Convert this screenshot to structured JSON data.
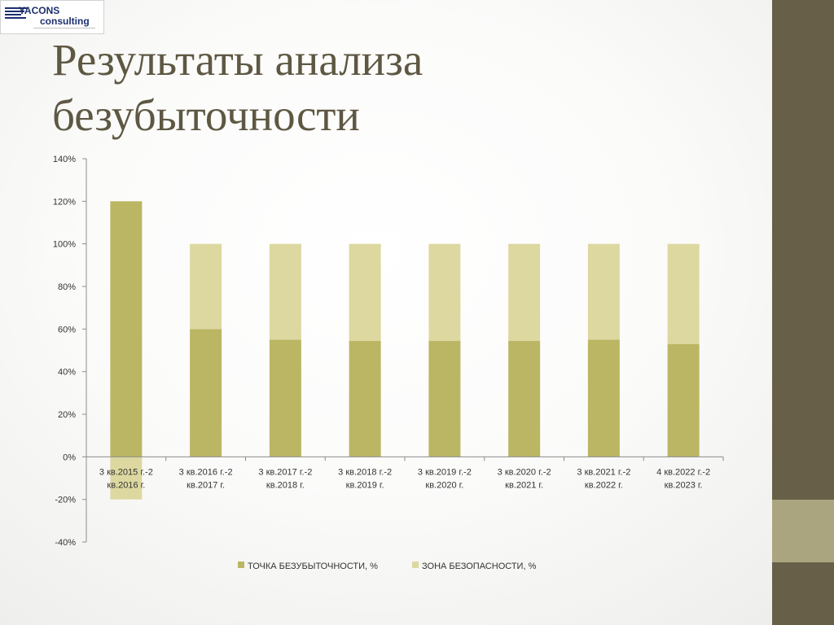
{
  "logo": {
    "line1": "YACONS",
    "line2": "consulting"
  },
  "slide": {
    "title_line1": "Результаты анализа",
    "title_line2": "безубыточности"
  },
  "colors": {
    "series1": "#bbb663",
    "series2": "#ddd8a0",
    "side_band": "#675f48",
    "side_accent": "#aba57f",
    "title": "#5e5843"
  },
  "chart_data": {
    "type": "bar",
    "stacked": true,
    "categories": [
      [
        "3 кв.2015 г.-2",
        "кв.2016 г."
      ],
      [
        "3 кв.2016 г.-2",
        "кв.2017 г."
      ],
      [
        "3 кв.2017 г.-2",
        "кв.2018 г."
      ],
      [
        "3 кв.2018 г.-2",
        "кв.2019 г."
      ],
      [
        "3 кв.2019 г.-2",
        "кв.2020 г."
      ],
      [
        "3 кв.2020 г.-2",
        "кв.2021 г."
      ],
      [
        "3 кв.2021 г.-2",
        "кв.2022 г."
      ],
      [
        "4 кв.2022 г.-2",
        "кв.2023 г."
      ]
    ],
    "series": [
      {
        "name": "ТОЧКА БЕЗУБЫТОЧНОСТИ, %",
        "values": [
          120,
          60,
          55,
          54.5,
          54.5,
          54.5,
          55,
          53
        ]
      },
      {
        "name": "ЗОНА БЕЗОПАСНОСТИ, %",
        "values": [
          -20,
          40,
          45,
          45.5,
          45.5,
          45.5,
          45,
          47
        ]
      }
    ],
    "ylim": [
      -40,
      140
    ],
    "yticks": [
      "-40%",
      "-20%",
      "0%",
      "20%",
      "40%",
      "60%",
      "80%",
      "100%",
      "120%",
      "140%"
    ],
    "grid": false,
    "legend": "bottom",
    "title": "",
    "xlabel": "",
    "ylabel": ""
  }
}
